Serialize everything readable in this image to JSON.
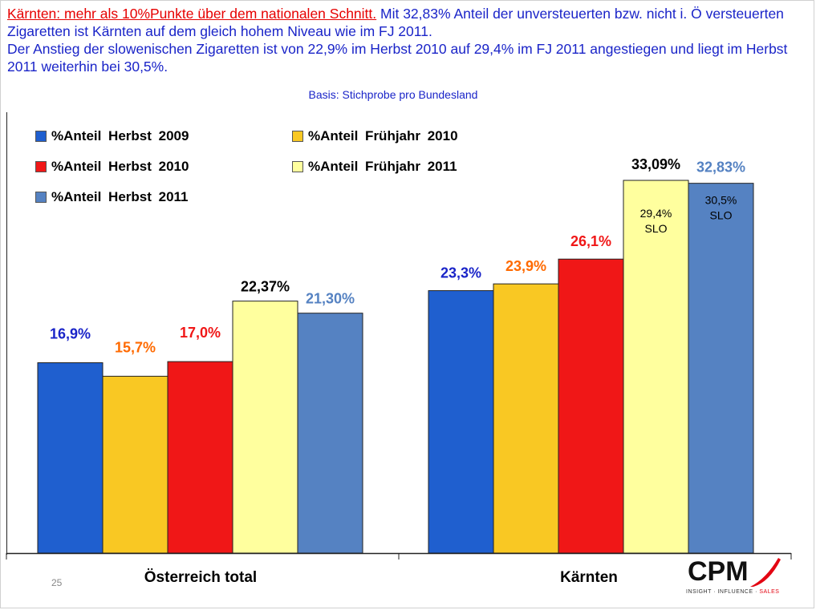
{
  "headline": {
    "red_underlined": "Kärnten: mehr als 10%Punkte über dem nationalen Schnitt.",
    "line1_rest": " Mit 32,83% Anteil der unversteuerten bzw. nicht i. Ö versteuerten Zigaretten ist Kärnten auf dem gleich hohem Niveau wie im FJ 2011.",
    "line2": "Der Anstieg der slowenischen Zigaretten ist von 22,9% im Herbst 2010 auf 29,4% im FJ 2011 angestiegen und liegt im Herbst 2011 weiterhin bei 30,5%."
  },
  "basis": "Basis: Stichprobe pro Bundesland",
  "page_number": "25",
  "logo": {
    "name": "CPM",
    "tagline_prefix": "INSIGHT · INFLUENCE · ",
    "tagline_accent": "SALES"
  },
  "colors": {
    "herbst_2009": "#1f5fcf",
    "fruehjahr_2010": "#f9c823",
    "herbst_2010": "#f01717",
    "fruehjahr_2011": "#ffff9e",
    "herbst_2011": "#5582c2",
    "label_orange": "#ff6a00",
    "label_blue": "#1a24c8",
    "label_steel": "#5582c2"
  },
  "chart_data": {
    "type": "bar",
    "categories": [
      "Österreich total",
      "Kärnten"
    ],
    "series": [
      {
        "name": "%Anteil Herbst 2009",
        "values": [
          16.9,
          23.3
        ],
        "labels": [
          "16,9%",
          "23,3%"
        ],
        "color": "#1f5fcf",
        "label_color": "#1a24c8"
      },
      {
        "name": "%Anteil Frühjahr 2010",
        "values": [
          15.7,
          23.9
        ],
        "labels": [
          "15,7%",
          "23,9%"
        ],
        "color": "#f9c823",
        "label_color": "#ff6a00"
      },
      {
        "name": "%Anteil Herbst 2010",
        "values": [
          17.0,
          26.1
        ],
        "labels": [
          "17,0%",
          "26,1%"
        ],
        "color": "#f01717",
        "label_color": "#f01717"
      },
      {
        "name": "%Anteil Frühjahr 2011",
        "values": [
          22.37,
          33.09
        ],
        "labels": [
          "22,37%",
          "33,09%"
        ],
        "color": "#ffff9e",
        "label_color": "#000000"
      },
      {
        "name": "%Anteil Herbst 2011",
        "values": [
          21.3,
          32.83
        ],
        "labels": [
          "21,30%",
          "32,83%"
        ],
        "color": "#5582c2",
        "label_color": "#5582c2"
      }
    ],
    "annotations": [
      {
        "series": 3,
        "category": 1,
        "lines": [
          "29,4%",
          "SLO"
        ]
      },
      {
        "series": 4,
        "category": 1,
        "lines": [
          "30,5%",
          "SLO"
        ]
      }
    ],
    "legend": {
      "position": "top-left"
    },
    "ylim": [
      0,
      37
    ],
    "grid": false
  }
}
